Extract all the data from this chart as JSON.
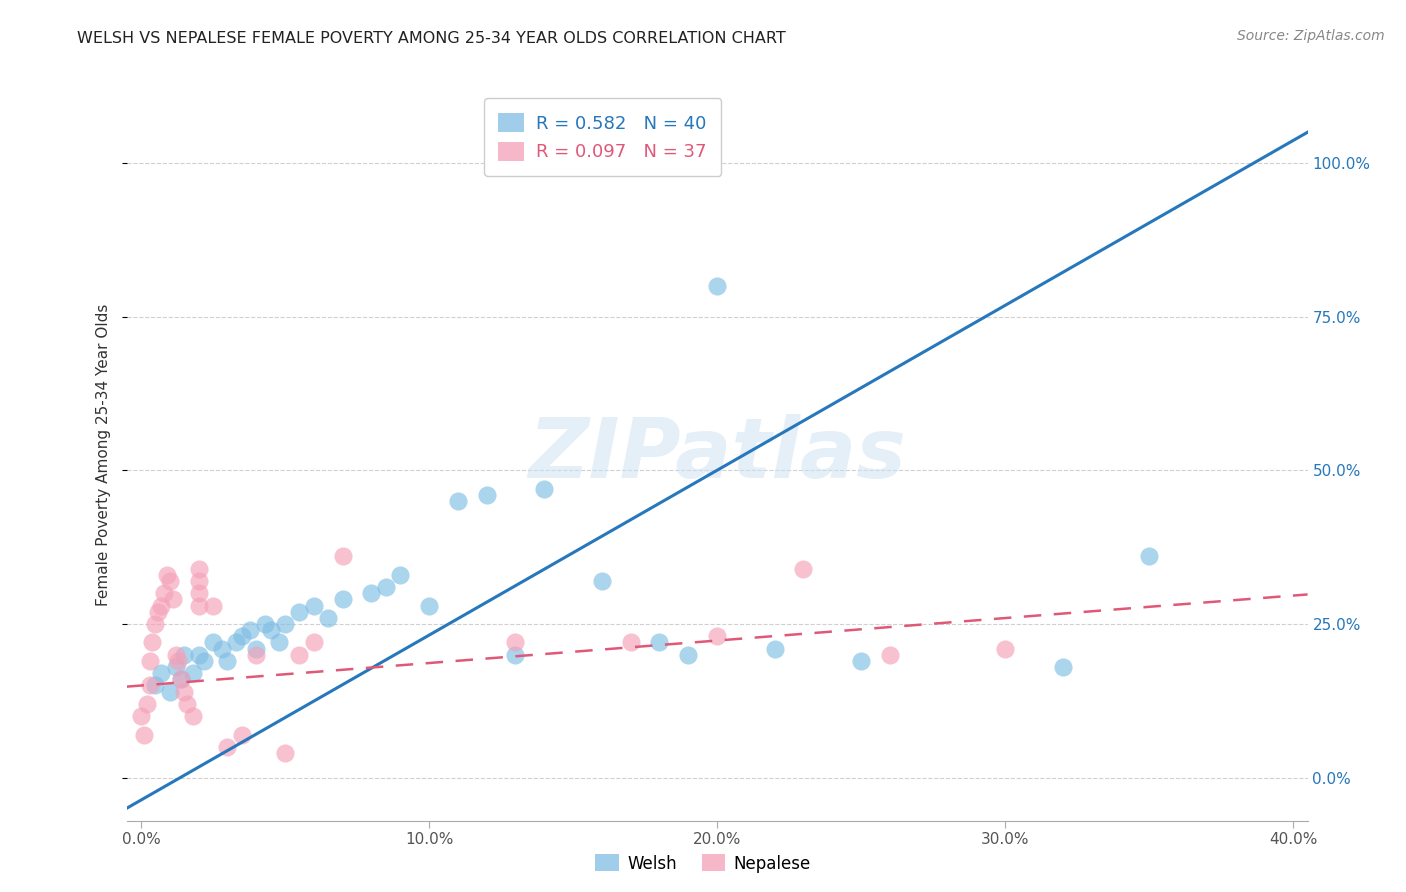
{
  "title": "WELSH VS NEPALESE FEMALE POVERTY AMONG 25-34 YEAR OLDS CORRELATION CHART",
  "source": "Source: ZipAtlas.com",
  "ylabel": "Female Poverty Among 25-34 Year Olds",
  "xlim": [
    -0.005,
    0.405
  ],
  "ylim": [
    -0.07,
    1.12
  ],
  "xtick_labels": [
    "0.0%",
    "10.0%",
    "20.0%",
    "30.0%",
    "40.0%"
  ],
  "xtick_vals": [
    0.0,
    0.1,
    0.2,
    0.3,
    0.4
  ],
  "ytick_labels": [
    "0.0%",
    "25.0%",
    "50.0%",
    "75.0%",
    "100.0%"
  ],
  "ytick_vals": [
    0.0,
    0.25,
    0.5,
    0.75,
    1.0
  ],
  "welsh_color": "#7fbde4",
  "nepalese_color": "#f4a0b8",
  "welsh_line_color": "#2677bb",
  "nepalese_line_color": "#e05878",
  "welsh_R": 0.582,
  "welsh_N": 40,
  "nepalese_R": 0.097,
  "nepalese_N": 37,
  "welsh_x": [
    0.005,
    0.007,
    0.01,
    0.012,
    0.014,
    0.015,
    0.018,
    0.02,
    0.022,
    0.025,
    0.028,
    0.03,
    0.033,
    0.035,
    0.038,
    0.04,
    0.043,
    0.045,
    0.048,
    0.05,
    0.055,
    0.06,
    0.065,
    0.07,
    0.08,
    0.085,
    0.09,
    0.1,
    0.11,
    0.12,
    0.13,
    0.14,
    0.16,
    0.18,
    0.19,
    0.2,
    0.22,
    0.25,
    0.32,
    0.35
  ],
  "welsh_y": [
    0.15,
    0.17,
    0.14,
    0.18,
    0.16,
    0.2,
    0.17,
    0.2,
    0.19,
    0.22,
    0.21,
    0.19,
    0.22,
    0.23,
    0.24,
    0.21,
    0.25,
    0.24,
    0.22,
    0.25,
    0.27,
    0.28,
    0.26,
    0.29,
    0.3,
    0.31,
    0.33,
    0.28,
    0.45,
    0.46,
    0.2,
    0.47,
    0.32,
    0.22,
    0.2,
    0.8,
    0.21,
    0.19,
    0.18,
    0.36
  ],
  "nepalese_x": [
    0.0,
    0.001,
    0.002,
    0.003,
    0.003,
    0.004,
    0.005,
    0.006,
    0.007,
    0.008,
    0.009,
    0.01,
    0.011,
    0.012,
    0.013,
    0.014,
    0.015,
    0.016,
    0.018,
    0.02,
    0.02,
    0.02,
    0.02,
    0.025,
    0.03,
    0.035,
    0.04,
    0.05,
    0.055,
    0.06,
    0.07,
    0.13,
    0.17,
    0.2,
    0.23,
    0.26,
    0.3
  ],
  "nepalese_y": [
    0.1,
    0.07,
    0.12,
    0.15,
    0.19,
    0.22,
    0.25,
    0.27,
    0.28,
    0.3,
    0.33,
    0.32,
    0.29,
    0.2,
    0.19,
    0.16,
    0.14,
    0.12,
    0.1,
    0.28,
    0.3,
    0.32,
    0.34,
    0.28,
    0.05,
    0.07,
    0.2,
    0.04,
    0.2,
    0.22,
    0.36,
    0.22,
    0.22,
    0.23,
    0.34,
    0.2,
    0.21
  ],
  "welsh_line_x0": -0.005,
  "welsh_line_x1": 0.405,
  "welsh_line_y0": -0.05,
  "welsh_line_y1": 1.05,
  "nep_line_x0": -0.005,
  "nep_line_x1": 0.405,
  "nep_line_y0": 0.148,
  "nep_line_y1": 0.298,
  "watermark": "ZIPatlas",
  "grid_color": "#d0d0d0",
  "background_color": "#ffffff"
}
